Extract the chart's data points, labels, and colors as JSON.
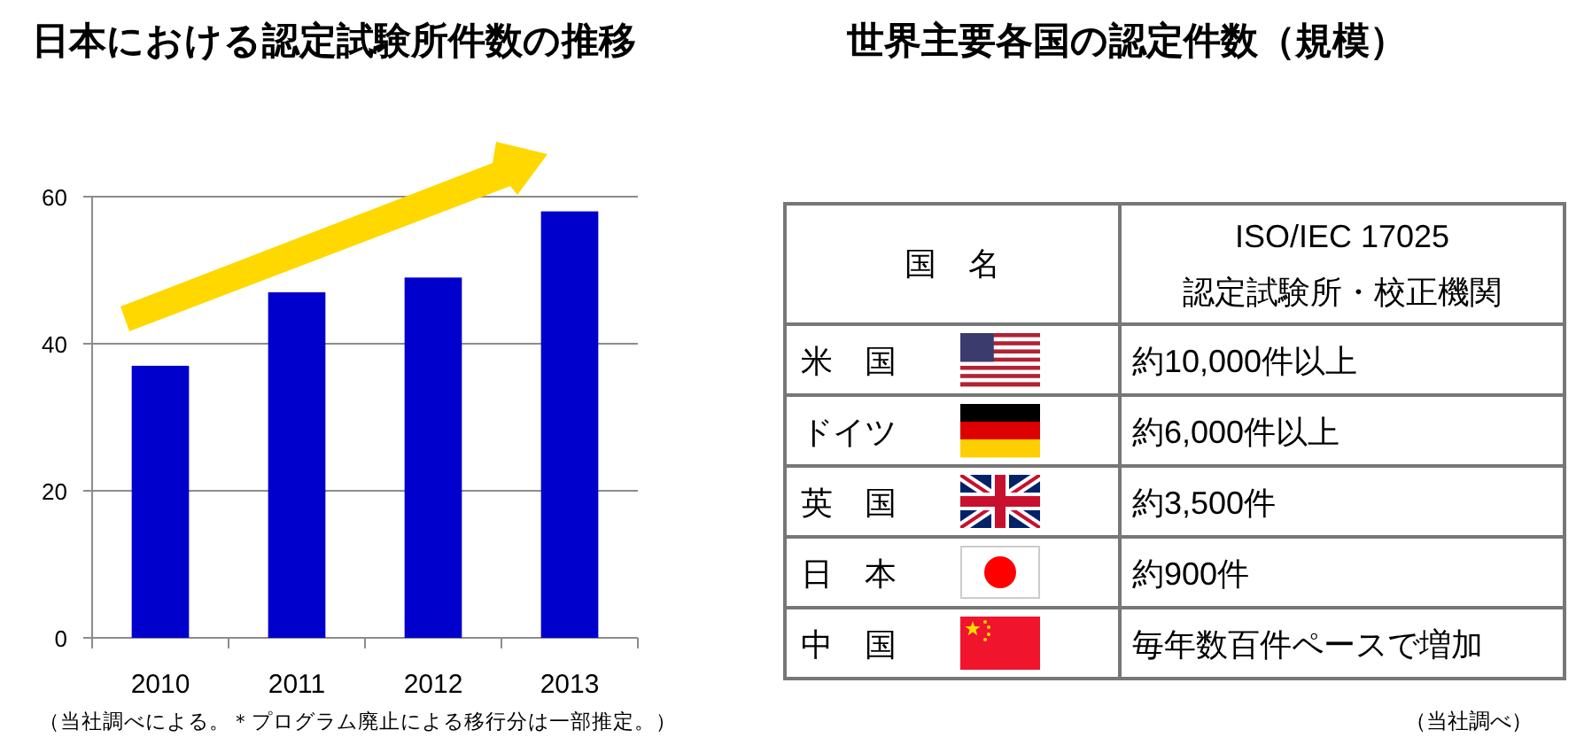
{
  "chart_data": [
    {
      "type": "bar",
      "title": "日本における認定試験所件数の推移",
      "categories": [
        "2010",
        "2011",
        "2012",
        "2013"
      ],
      "values": [
        37,
        47,
        49,
        58
      ],
      "color": "#0000cc",
      "ylim": [
        0,
        60
      ],
      "yticks": [
        0,
        20,
        40,
        60
      ],
      "grid": "y",
      "annotations": [
        "（当社調べによる。＊プログラム廃止による移行分は一部推定。）"
      ]
    },
    {
      "type": "other",
      "title": "世界主要各国の認定件数（規模）",
      "categories": [
        "国　名",
        "ISO/IEC 17025\n認定試験所・校正機関"
      ],
      "y_categories": [
        "米　国",
        "ドイツ",
        "英　国",
        "日　本",
        "中　国"
      ],
      "cell_labels": [
        [
          "約10,000件以上"
        ],
        [
          "約6,000件以上"
        ],
        [
          "約3,500件"
        ],
        [
          "約900件"
        ],
        [
          "毎年数百件ペースで増加"
        ]
      ],
      "annotations": [
        "（当社調べ）"
      ]
    }
  ]
}
